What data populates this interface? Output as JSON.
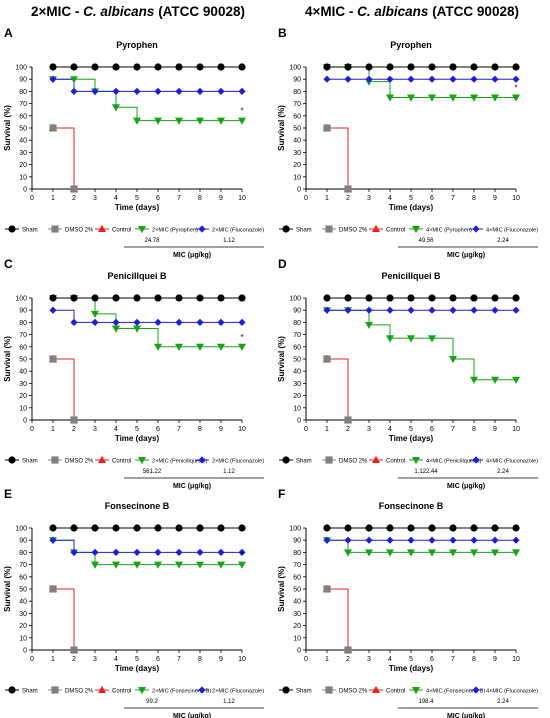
{
  "headers": {
    "left": {
      "prefix": "2×MIC - ",
      "species": "C. albicans",
      "suffix": " (ATCC 90028)"
    },
    "right": {
      "prefix": "4×MIC - ",
      "species": "C. albicans",
      "suffix": " (ATCC 90028)"
    }
  },
  "colors": {
    "sham": "#000000",
    "dmso": "#808080",
    "control": "#e8231f",
    "compound": "#19a319",
    "fluconazole": "#1f1fd6"
  },
  "chart_data": [
    {
      "panel": "A",
      "type": "line",
      "title": "Pyrophen",
      "xlabel": "Time (days)",
      "ylabel": "Survival (%)",
      "xlim": [
        0,
        10
      ],
      "ylim": [
        0,
        100
      ],
      "xticks": [
        "0",
        "1",
        "2",
        "3",
        "4",
        "5",
        "6",
        "7",
        "8",
        "9",
        "10"
      ],
      "yticks": [
        "0",
        "10",
        "20",
        "30",
        "40",
        "50",
        "60",
        "70",
        "80",
        "90",
        "100"
      ],
      "series": [
        {
          "name": "Sham",
          "marker": "circle",
          "color": "#000000",
          "x": [
            1,
            2,
            3,
            4,
            5,
            6,
            7,
            8,
            9,
            10
          ],
          "y": [
            100,
            100,
            100,
            100,
            100,
            100,
            100,
            100,
            100,
            100
          ]
        },
        {
          "name": "DMSO 2%",
          "marker": "square",
          "color": "#808080",
          "x": [
            1,
            2
          ],
          "y": [
            50,
            0
          ]
        },
        {
          "name": "Control",
          "marker": "triangle-up",
          "color": "#e8231f",
          "x": [
            1,
            2
          ],
          "y": [
            50,
            0
          ]
        },
        {
          "name": "2×MIC (Pyrophen)",
          "marker": "triangle-down",
          "color": "#19a319",
          "x": [
            1,
            2,
            3,
            4,
            5,
            6,
            7,
            8,
            9,
            10
          ],
          "y": [
            90,
            90,
            80,
            67,
            56,
            56,
            56,
            56,
            56,
            56
          ]
        },
        {
          "name": "2×MIC (Fluconazole)",
          "marker": "diamond",
          "color": "#1f1fd6",
          "x": [
            1,
            2,
            3,
            4,
            5,
            6,
            7,
            8,
            9,
            10
          ],
          "y": [
            90,
            80,
            80,
            80,
            80,
            80,
            80,
            80,
            80,
            80
          ]
        }
      ],
      "annotation": "*",
      "mic_values": [
        "24.78",
        "1.12"
      ],
      "mic_label": "MIC (μg/kg)"
    },
    {
      "panel": "B",
      "type": "line",
      "title": "Pyrophen",
      "xlabel": "Time (days)",
      "ylabel": "Survival (%)",
      "xlim": [
        0,
        10
      ],
      "ylim": [
        0,
        100
      ],
      "xticks": [
        "0",
        "1",
        "2",
        "3",
        "4",
        "5",
        "6",
        "7",
        "8",
        "9",
        "10"
      ],
      "yticks": [
        "0",
        "10",
        "20",
        "30",
        "40",
        "50",
        "60",
        "70",
        "80",
        "90",
        "100"
      ],
      "series": [
        {
          "name": "Sham",
          "marker": "circle",
          "color": "#000000",
          "x": [
            1,
            2,
            3,
            4,
            5,
            6,
            7,
            8,
            9,
            10
          ],
          "y": [
            100,
            100,
            100,
            100,
            100,
            100,
            100,
            100,
            100,
            100
          ]
        },
        {
          "name": "DMSO 2%",
          "marker": "square",
          "color": "#808080",
          "x": [
            1,
            2
          ],
          "y": [
            50,
            0
          ]
        },
        {
          "name": "Control",
          "marker": "triangle-up",
          "color": "#e8231f",
          "x": [
            1,
            2
          ],
          "y": [
            50,
            0
          ]
        },
        {
          "name": "4×MIC (Pyrophen)",
          "marker": "triangle-down",
          "color": "#19a319",
          "x": [
            1,
            2,
            3,
            4,
            5,
            6,
            7,
            8,
            9,
            10
          ],
          "y": [
            100,
            100,
            88,
            75,
            75,
            75,
            75,
            75,
            75,
            75
          ]
        },
        {
          "name": "4×MIC (Fluconazole)",
          "marker": "diamond",
          "color": "#1f1fd6",
          "x": [
            1,
            2,
            3,
            4,
            5,
            6,
            7,
            8,
            9,
            10
          ],
          "y": [
            90,
            90,
            90,
            90,
            90,
            90,
            90,
            90,
            90,
            90
          ]
        }
      ],
      "annotation": "*",
      "mic_values": [
        "49.56",
        "2.24"
      ],
      "mic_label": "MIC (μg/kg)"
    },
    {
      "panel": "C",
      "type": "line",
      "title": "Penicillquei B",
      "xlabel": "Time (days)",
      "ylabel": "Survival (%)",
      "xlim": [
        0,
        10
      ],
      "ylim": [
        0,
        100
      ],
      "xticks": [
        "0",
        "1",
        "2",
        "3",
        "4",
        "5",
        "6",
        "7",
        "8",
        "9",
        "10"
      ],
      "yticks": [
        "0",
        "10",
        "20",
        "30",
        "40",
        "50",
        "60",
        "70",
        "80",
        "90",
        "100"
      ],
      "series": [
        {
          "name": "Sham",
          "marker": "circle",
          "color": "#000000",
          "x": [
            1,
            2,
            3,
            4,
            5,
            6,
            7,
            8,
            9,
            10
          ],
          "y": [
            100,
            100,
            100,
            100,
            100,
            100,
            100,
            100,
            100,
            100
          ]
        },
        {
          "name": "DMSO 2%",
          "marker": "square",
          "color": "#808080",
          "x": [
            1,
            2
          ],
          "y": [
            50,
            0
          ]
        },
        {
          "name": "Control",
          "marker": "triangle-up",
          "color": "#e8231f",
          "x": [
            1,
            2
          ],
          "y": [
            50,
            0
          ]
        },
        {
          "name": "2×MIC (Penicillquei B)",
          "marker": "triangle-down",
          "color": "#19a319",
          "x": [
            1,
            2,
            3,
            4,
            5,
            6,
            7,
            8,
            9,
            10
          ],
          "y": [
            100,
            100,
            87,
            75,
            75,
            60,
            60,
            60,
            60,
            60
          ]
        },
        {
          "name": "2×MIC (Fluconazole)",
          "marker": "diamond",
          "color": "#1f1fd6",
          "x": [
            1,
            2,
            3,
            4,
            5,
            6,
            7,
            8,
            9,
            10
          ],
          "y": [
            90,
            80,
            80,
            80,
            80,
            80,
            80,
            80,
            80,
            80
          ]
        }
      ],
      "annotation": "*",
      "mic_values": [
        "561.22",
        "1.12"
      ],
      "mic_label": "MIC (μg/kg)"
    },
    {
      "panel": "D",
      "type": "line",
      "title": "Penicillquei B",
      "xlabel": "Time (days)",
      "ylabel": "Survival (%)",
      "xlim": [
        0,
        10
      ],
      "ylim": [
        0,
        100
      ],
      "xticks": [
        "0",
        "1",
        "2",
        "3",
        "4",
        "5",
        "6",
        "7",
        "8",
        "9",
        "10"
      ],
      "yticks": [
        "0",
        "10",
        "20",
        "30",
        "40",
        "50",
        "60",
        "70",
        "80",
        "90",
        "100"
      ],
      "series": [
        {
          "name": "Sham",
          "marker": "circle",
          "color": "#000000",
          "x": [
            1,
            2,
            3,
            4,
            5,
            6,
            7,
            8,
            9,
            10
          ],
          "y": [
            100,
            100,
            100,
            100,
            100,
            100,
            100,
            100,
            100,
            100
          ]
        },
        {
          "name": "DMSO 2%",
          "marker": "square",
          "color": "#808080",
          "x": [
            1,
            2
          ],
          "y": [
            50,
            0
          ]
        },
        {
          "name": "Control",
          "marker": "triangle-up",
          "color": "#e8231f",
          "x": [
            1,
            2
          ],
          "y": [
            50,
            0
          ]
        },
        {
          "name": "4×MIC (Penicillquei B)",
          "marker": "triangle-down",
          "color": "#19a319",
          "x": [
            1,
            2,
            3,
            4,
            5,
            6,
            7,
            8,
            9,
            10
          ],
          "y": [
            90,
            90,
            78,
            67,
            67,
            67,
            50,
            33,
            33,
            33
          ]
        },
        {
          "name": "4×MIC (Fluconazole)",
          "marker": "diamond",
          "color": "#1f1fd6",
          "x": [
            1,
            2,
            3,
            4,
            5,
            6,
            7,
            8,
            9,
            10
          ],
          "y": [
            90,
            90,
            90,
            90,
            90,
            90,
            90,
            90,
            90,
            90
          ]
        }
      ],
      "annotation": "",
      "mic_values": [
        "1,122.44",
        "2.24"
      ],
      "mic_label": "MIC (μg/kg)"
    },
    {
      "panel": "E",
      "type": "line",
      "title": "Fonsecinone B",
      "xlabel": "Time (days)",
      "ylabel": "Survival (%)",
      "xlim": [
        0,
        10
      ],
      "ylim": [
        0,
        100
      ],
      "xticks": [
        "0",
        "1",
        "2",
        "3",
        "4",
        "5",
        "6",
        "7",
        "8",
        "9",
        "10"
      ],
      "yticks": [
        "0",
        "10",
        "20",
        "30",
        "40",
        "50",
        "60",
        "70",
        "80",
        "90",
        "100"
      ],
      "series": [
        {
          "name": "Sham",
          "marker": "circle",
          "color": "#000000",
          "x": [
            1,
            2,
            3,
            4,
            5,
            6,
            7,
            8,
            9,
            10
          ],
          "y": [
            100,
            100,
            100,
            100,
            100,
            100,
            100,
            100,
            100,
            100
          ]
        },
        {
          "name": "DMSO 2%",
          "marker": "square",
          "color": "#808080",
          "x": [
            1,
            2
          ],
          "y": [
            50,
            0
          ]
        },
        {
          "name": "Control",
          "marker": "triangle-up",
          "color": "#e8231f",
          "x": [
            1,
            2
          ],
          "y": [
            50,
            0
          ]
        },
        {
          "name": "2×MIC (Fonsecinone B)",
          "marker": "triangle-down",
          "color": "#19a319",
          "x": [
            1,
            2,
            3,
            4,
            5,
            6,
            7,
            8,
            9,
            10
          ],
          "y": [
            90,
            80,
            70,
            70,
            70,
            70,
            70,
            70,
            70,
            70
          ]
        },
        {
          "name": "2×MIC (Fluconazole)",
          "marker": "diamond",
          "color": "#1f1fd6",
          "x": [
            1,
            2,
            3,
            4,
            5,
            6,
            7,
            8,
            9,
            10
          ],
          "y": [
            90,
            80,
            80,
            80,
            80,
            80,
            80,
            80,
            80,
            80
          ]
        }
      ],
      "annotation": "*",
      "mic_values": [
        "99.2",
        "1.12"
      ],
      "mic_label": "MIC (μg/kg)"
    },
    {
      "panel": "F",
      "type": "line",
      "title": "Fonsecinone B",
      "xlabel": "Time (days)",
      "ylabel": "Survival (%)",
      "xlim": [
        0,
        10
      ],
      "ylim": [
        0,
        100
      ],
      "xticks": [
        "0",
        "1",
        "2",
        "3",
        "4",
        "5",
        "6",
        "7",
        "8",
        "9",
        "10"
      ],
      "yticks": [
        "0",
        "10",
        "20",
        "30",
        "40",
        "50",
        "60",
        "70",
        "80",
        "90",
        "100"
      ],
      "series": [
        {
          "name": "Sham",
          "marker": "circle",
          "color": "#000000",
          "x": [
            1,
            2,
            3,
            4,
            5,
            6,
            7,
            8,
            9,
            10
          ],
          "y": [
            100,
            100,
            100,
            100,
            100,
            100,
            100,
            100,
            100,
            100
          ]
        },
        {
          "name": "DMSO 2%",
          "marker": "square",
          "color": "#808080",
          "x": [
            1,
            2
          ],
          "y": [
            50,
            0
          ]
        },
        {
          "name": "Control",
          "marker": "triangle-up",
          "color": "#e8231f",
          "x": [
            1,
            2
          ],
          "y": [
            50,
            0
          ]
        },
        {
          "name": "4×MIC (Fonsecinone B)",
          "marker": "triangle-down",
          "color": "#19a319",
          "x": [
            1,
            2,
            3,
            4,
            5,
            6,
            7,
            8,
            9,
            10
          ],
          "y": [
            90,
            80,
            80,
            80,
            80,
            80,
            80,
            80,
            80,
            80
          ]
        },
        {
          "name": "4×MIC (Fluconazole)",
          "marker": "diamond",
          "color": "#1f1fd6",
          "x": [
            1,
            2,
            3,
            4,
            5,
            6,
            7,
            8,
            9,
            10
          ],
          "y": [
            90,
            90,
            90,
            90,
            90,
            90,
            90,
            90,
            90,
            90
          ]
        }
      ],
      "annotation": "*",
      "mic_values": [
        "198.4",
        "2.24"
      ],
      "mic_label": "MIC (μg/kg)"
    }
  ]
}
